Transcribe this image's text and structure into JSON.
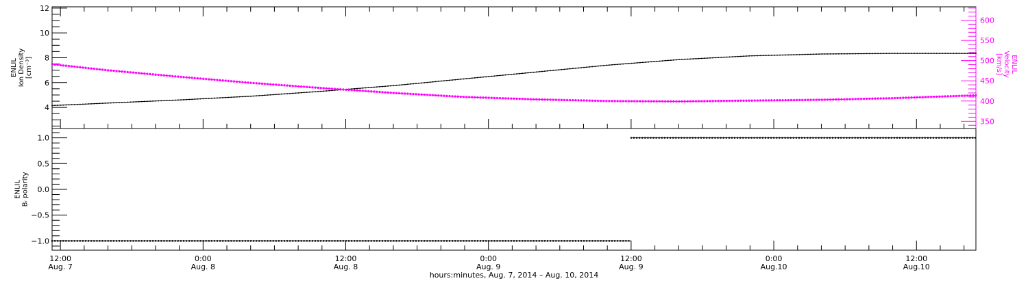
{
  "colors": {
    "density": "#000000",
    "velocity": "#ff00ff",
    "polarity": "#000000",
    "axis": "#000000"
  },
  "chart_data": [
    {
      "type": "line",
      "panel": "top",
      "x_unit": "hours since 2014-08-07 00:00",
      "x_range": [
        11.3,
        89.0
      ],
      "y_left": {
        "label_lines": [
          "ENLIL",
          "Ion Density",
          "[cm⁻³]"
        ],
        "range": [
          2.3,
          12.1
        ],
        "ticks": [
          4,
          6,
          8,
          10,
          12
        ]
      },
      "y_right": {
        "label_lines": [
          "ENLIL",
          "Velocity",
          "[km/s]"
        ],
        "range": [
          332,
          633
        ],
        "ticks": [
          350,
          400,
          450,
          500,
          550,
          600
        ]
      },
      "series": [
        {
          "name": "",
          "axis": "left",
          "color_key": "density",
          "x": [
            11.3,
            16,
            22,
            28,
            34,
            40,
            46,
            52,
            58,
            64,
            70,
            76,
            82,
            89
          ],
          "y": [
            4.15,
            4.35,
            4.6,
            4.9,
            5.3,
            5.75,
            6.3,
            6.85,
            7.4,
            7.85,
            8.15,
            8.3,
            8.35,
            8.35
          ]
        },
        {
          "name": "",
          "axis": "right",
          "color_key": "velocity",
          "x": [
            11.3,
            16,
            22,
            28,
            34,
            40,
            46,
            52,
            58,
            64,
            70,
            76,
            82,
            89
          ],
          "y": [
            491,
            476,
            460,
            445,
            432,
            420,
            410,
            404,
            400,
            399,
            401,
            403,
            407,
            414
          ]
        }
      ]
    },
    {
      "type": "scatter",
      "panel": "bottom",
      "x_unit": "hours since 2014-08-07 00:00",
      "x_range": [
        11.3,
        89.0
      ],
      "y_left": {
        "label_lines": [
          "ENLIL",
          "Bᵣ polarity"
        ],
        "range": [
          -1.18,
          1.18
        ],
        "ticks": [
          -1.0,
          -0.5,
          0.0,
          0.5,
          1.0
        ],
        "tick_labels": [
          "−1.0",
          "−0.5",
          "0.0",
          "0.5",
          "1.0"
        ]
      },
      "segments": [
        {
          "x_start": 11.3,
          "x_end": 60.0,
          "value": -1.0
        },
        {
          "x_start": 60.0,
          "x_end": 89.0,
          "value": 1.0
        }
      ],
      "x_ticks": [
        {
          "x": 12,
          "time": "12:00",
          "date": "Aug. 7"
        },
        {
          "x": 24,
          "time": "0:00",
          "date": "Aug. 8"
        },
        {
          "x": 36,
          "time": "12:00",
          "date": "Aug. 8"
        },
        {
          "x": 48,
          "time": "0:00",
          "date": "Aug. 9"
        },
        {
          "x": 60,
          "time": "12:00",
          "date": "Aug. 9"
        },
        {
          "x": 72,
          "time": "0:00",
          "date": "Aug.10"
        },
        {
          "x": 84,
          "time": "12:00",
          "date": "Aug.10"
        }
      ],
      "xlabel": "hours:minutes, Aug.  7, 2014 – Aug. 10, 2014"
    }
  ]
}
